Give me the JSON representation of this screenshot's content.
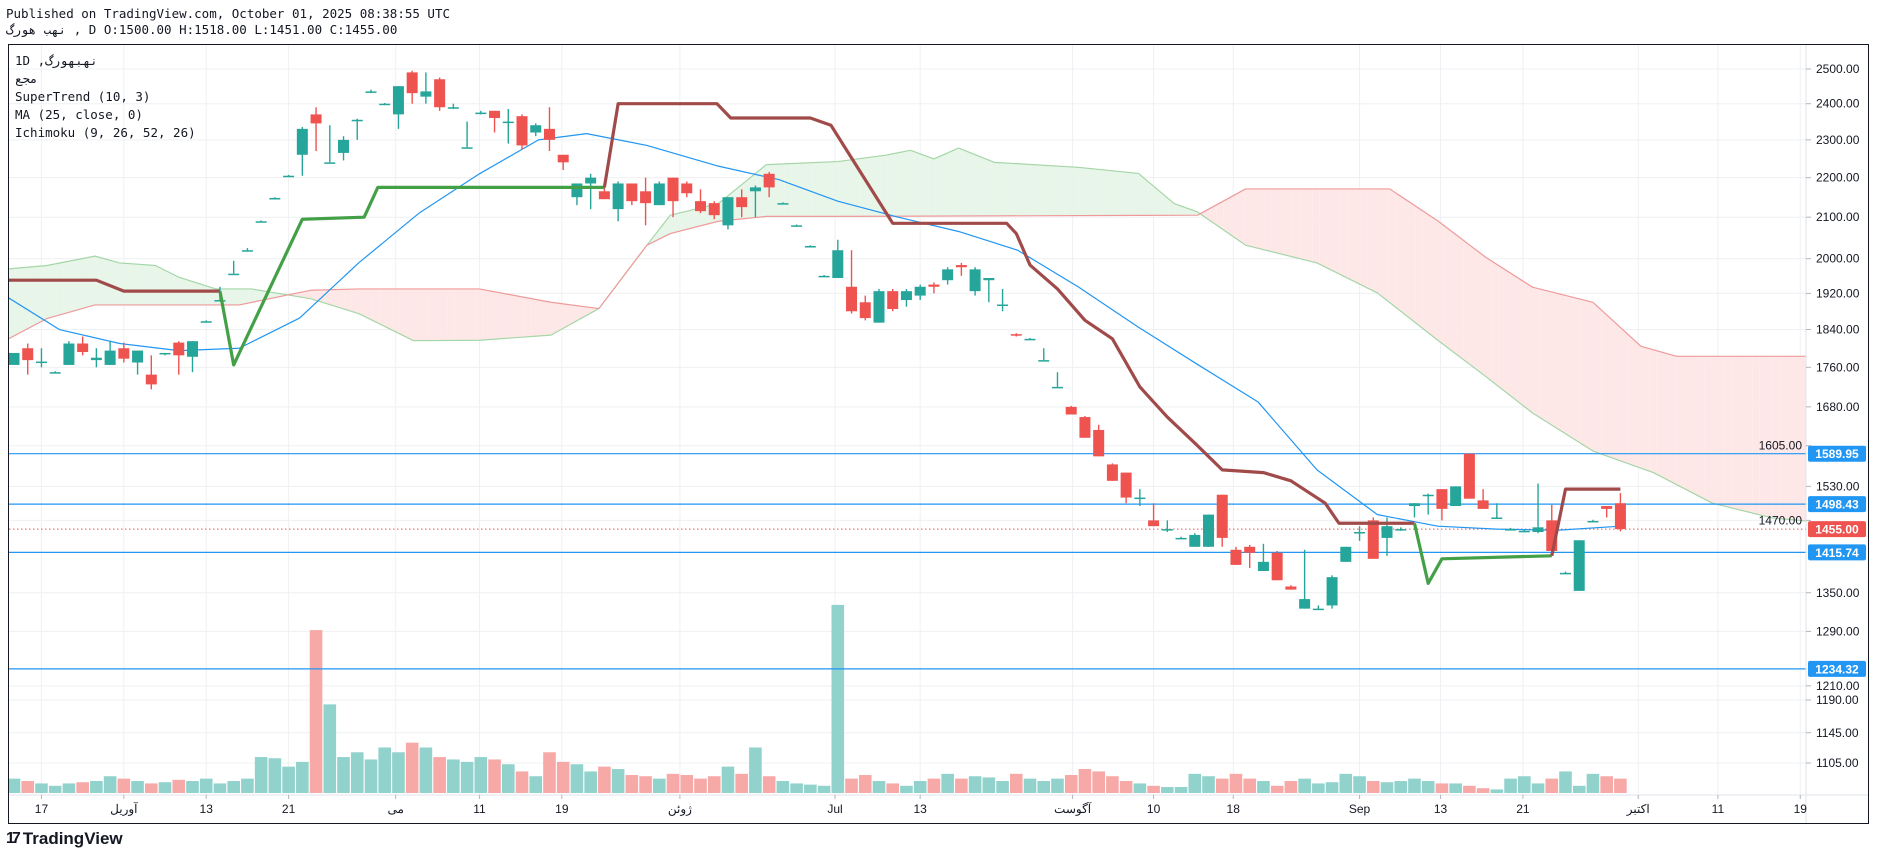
{
  "header": {
    "published": "Published on TradingView.com, October 01, 2025 08:38:55 UTC",
    "symbol_line": "نهب هورگ , D O:1500.00 H:1518.00 L:1451.00 C:1455.00"
  },
  "legend": {
    "symbol": "1D ,نهبهورگ",
    "exchange": "مجع",
    "indicators": [
      "SuperTrend (10, 3)",
      "MA (25, close, 0)",
      "Ichimoku (9, 26, 52, 26)"
    ]
  },
  "brand": {
    "name": "TradingView",
    "mark": "17"
  },
  "colors": {
    "up": "#26a69a",
    "down": "#ef5350",
    "vol_up": "#92d2cc",
    "vol_down": "#f7a9a7",
    "ma": "#2196f3",
    "st_up": "#43a047",
    "st_down": "#a14a4a",
    "cloud_up": "#e8f5e9",
    "cloud_down": "#fde8e7",
    "level": "#2196f3",
    "last": "#ef5350"
  },
  "chart_data": {
    "type": "candlestick",
    "title": "نهبهورگ, 1D",
    "scale": "log",
    "ylim": [
      1060,
      2560
    ],
    "xlim": [
      -0.5,
      130.5
    ],
    "grid": true,
    "y_ticks": [
      "2500.00",
      "2400.00",
      "2300.00",
      "2200.00",
      "2100.00",
      "2000.00",
      "1920.00",
      "1840.00",
      "1760.00",
      "1680.00",
      "1605.00",
      "1530.00",
      "1470.00",
      "1350.00",
      "1290.00",
      "1210.00",
      "1190.00",
      "1145.00",
      "1105.00"
    ],
    "x_ticks": [
      {
        "i": 2.0,
        "label": "17"
      },
      {
        "i": 8.0,
        "label": "آوریل"
      },
      {
        "i": 14.0,
        "label": "13"
      },
      {
        "i": 20.0,
        "label": "21"
      },
      {
        "i": 27.8,
        "label": "می"
      },
      {
        "i": 33.9,
        "label": "11"
      },
      {
        "i": 39.9,
        "label": "19"
      },
      {
        "i": 48.5,
        "label": "ژوئن"
      },
      {
        "i": 59.8,
        "label": "Jul"
      },
      {
        "i": 66.0,
        "label": "13"
      },
      {
        "i": 77.1,
        "label": "آگوست"
      },
      {
        "i": 83.0,
        "label": "10"
      },
      {
        "i": 88.8,
        "label": "18"
      },
      {
        "i": 98.0,
        "label": "Sep"
      },
      {
        "i": 103.9,
        "label": "13"
      },
      {
        "i": 109.9,
        "label": "21"
      },
      {
        "i": 118.3,
        "label": "اکتبر"
      },
      {
        "i": 124.1,
        "label": "11"
      },
      {
        "i": 130.1,
        "label": "19"
      }
    ],
    "price_levels": [
      {
        "value": 1589.95,
        "label": "1589.95",
        "kind": "level"
      },
      {
        "value": 1498.43,
        "label": "1498.43",
        "kind": "level"
      },
      {
        "value": 1415.74,
        "label": "1415.74",
        "kind": "level"
      },
      {
        "value": 1234.32,
        "label": "1234.32",
        "kind": "level"
      },
      {
        "value": 1455.0,
        "label": "1455.00",
        "kind": "last"
      }
    ],
    "ohlc": [
      [
        1765,
        1790,
        1765,
        1790
      ],
      [
        1800,
        1810,
        1745,
        1775
      ],
      [
        1770,
        1800,
        1760,
        1772
      ],
      [
        1750,
        1752,
        1748,
        1750
      ],
      [
        1765,
        1815,
        1765,
        1810
      ],
      [
        1810,
        1825,
        1785,
        1792
      ],
      [
        1775,
        1800,
        1760,
        1780
      ],
      [
        1765,
        1815,
        1765,
        1795
      ],
      [
        1800,
        1812,
        1770,
        1778
      ],
      [
        1770,
        1795,
        1745,
        1795
      ],
      [
        1745,
        1785,
        1715,
        1725
      ],
      [
        1788,
        1790,
        1785,
        1790
      ],
      [
        1812,
        1815,
        1745,
        1785
      ],
      [
        1782,
        1815,
        1750,
        1815
      ],
      [
        1858,
        1860,
        1856,
        1858
      ],
      [
        1905,
        1935,
        1905,
        1905
      ],
      [
        1965,
        1995,
        1965,
        1965
      ],
      [
        2020,
        2025,
        2018,
        2020
      ],
      [
        2090,
        2092,
        2088,
        2090
      ],
      [
        2148,
        2150,
        2146,
        2148
      ],
      [
        2205,
        2207,
        2203,
        2205
      ],
      [
        2260,
        2335,
        2205,
        2330
      ],
      [
        2370,
        2390,
        2270,
        2345
      ],
      [
        2240,
        2340,
        2240,
        2240
      ],
      [
        2265,
        2310,
        2245,
        2300
      ],
      [
        2355,
        2358,
        2300,
        2355
      ],
      [
        2435,
        2440,
        2430,
        2435
      ],
      [
        2400,
        2402,
        2398,
        2400
      ],
      [
        2370,
        2450,
        2330,
        2450
      ],
      [
        2490,
        2495,
        2400,
        2430
      ],
      [
        2420,
        2490,
        2400,
        2435
      ],
      [
        2470,
        2475,
        2380,
        2390
      ],
      [
        2390,
        2400,
        2385,
        2390
      ],
      [
        2280,
        2350,
        2280,
        2280
      ],
      [
        2375,
        2380,
        2370,
        2375
      ],
      [
        2380,
        2380,
        2320,
        2360
      ],
      [
        2350,
        2385,
        2290,
        2350
      ],
      [
        2365,
        2370,
        2275,
        2285
      ],
      [
        2320,
        2345,
        2310,
        2340
      ],
      [
        2330,
        2390,
        2270,
        2300
      ],
      [
        2260,
        2260,
        2220,
        2240
      ],
      [
        2150,
        2185,
        2130,
        2185
      ],
      [
        2185,
        2210,
        2120,
        2200
      ],
      [
        2165,
        2175,
        2145,
        2145
      ],
      [
        2120,
        2190,
        2090,
        2185
      ],
      [
        2185,
        2185,
        2130,
        2140
      ],
      [
        2165,
        2200,
        2080,
        2135
      ],
      [
        2130,
        2190,
        2130,
        2185
      ],
      [
        2200,
        2200,
        2100,
        2140
      ],
      [
        2185,
        2190,
        2150,
        2160
      ],
      [
        2140,
        2170,
        2110,
        2115
      ],
      [
        2135,
        2140,
        2095,
        2105
      ],
      [
        2080,
        2150,
        2070,
        2150
      ],
      [
        2150,
        2170,
        2100,
        2125
      ],
      [
        2165,
        2180,
        2100,
        2175
      ],
      [
        2210,
        2215,
        2150,
        2175
      ],
      [
        2135,
        2137,
        2133,
        2135
      ],
      [
        2080,
        2082,
        2078,
        2080
      ],
      [
        2030,
        2032,
        2028,
        2030
      ],
      [
        1960,
        1962,
        1958,
        1960
      ],
      [
        1955,
        2045,
        1955,
        2020
      ],
      [
        1935,
        2020,
        1875,
        1880
      ],
      [
        1900,
        1915,
        1860,
        1865
      ],
      [
        1855,
        1930,
        1855,
        1925
      ],
      [
        1925,
        1930,
        1880,
        1885
      ],
      [
        1905,
        1930,
        1890,
        1925
      ],
      [
        1915,
        1940,
        1905,
        1935
      ],
      [
        1940,
        1945,
        1920,
        1935
      ],
      [
        1950,
        1980,
        1940,
        1975
      ],
      [
        1985,
        1990,
        1960,
        1980
      ],
      [
        1925,
        1980,
        1915,
        1975
      ],
      [
        1950,
        1955,
        1900,
        1955
      ],
      [
        1895,
        1930,
        1880,
        1895
      ],
      [
        1830,
        1832,
        1825,
        1828
      ],
      [
        1820,
        1822,
        1818,
        1820
      ],
      [
        1775,
        1800,
        1775,
        1775
      ],
      [
        1720,
        1750,
        1720,
        1720
      ],
      [
        1680,
        1682,
        1665,
        1665
      ],
      [
        1660,
        1662,
        1620,
        1620
      ],
      [
        1635,
        1645,
        1585,
        1585
      ],
      [
        1570,
        1572,
        1540,
        1540
      ],
      [
        1555,
        1555,
        1500,
        1510
      ],
      [
        1510,
        1525,
        1495,
        1510
      ],
      [
        1470,
        1500,
        1460,
        1460
      ],
      [
        1455,
        1470,
        1450,
        1455
      ],
      [
        1440,
        1442,
        1438,
        1440
      ],
      [
        1425,
        1448,
        1425,
        1445
      ],
      [
        1425,
        1480,
        1425,
        1480
      ],
      [
        1515,
        1515,
        1425,
        1440
      ],
      [
        1420,
        1425,
        1395,
        1395
      ],
      [
        1425,
        1428,
        1390,
        1415
      ],
      [
        1385,
        1430,
        1385,
        1400
      ],
      [
        1415,
        1418,
        1370,
        1370
      ],
      [
        1360,
        1362,
        1355,
        1355
      ],
      [
        1325,
        1420,
        1325,
        1340
      ],
      [
        1325,
        1330,
        1323,
        1325
      ],
      [
        1330,
        1378,
        1325,
        1375
      ],
      [
        1400,
        1425,
        1400,
        1425
      ],
      [
        1450,
        1460,
        1435,
        1450
      ],
      [
        1470,
        1475,
        1405,
        1405
      ],
      [
        1440,
        1475,
        1410,
        1460
      ],
      [
        1455,
        1458,
        1452,
        1455
      ],
      [
        1495,
        1500,
        1475,
        1500
      ],
      [
        1515,
        1517,
        1480,
        1515
      ],
      [
        1525,
        1525,
        1470,
        1490
      ],
      [
        1495,
        1530,
        1495,
        1530
      ],
      [
        1590,
        1590,
        1508,
        1508
      ],
      [
        1505,
        1525,
        1490,
        1490
      ],
      [
        1475,
        1500,
        1475,
        1475
      ],
      [
        1455,
        1457,
        1453,
        1455
      ],
      [
        1452,
        1454,
        1450,
        1452
      ],
      [
        1450,
        1535,
        1448,
        1458
      ],
      [
        1470,
        1497,
        1412,
        1418
      ],
      [
        1382,
        1384,
        1380,
        1382
      ],
      [
        1353,
        1436,
        1353,
        1436
      ],
      [
        1469,
        1471,
        1467,
        1469
      ],
      [
        1495,
        1495,
        1475,
        1490
      ],
      [
        1500,
        1518,
        1451,
        1455
      ]
    ],
    "volume_relative": [
      12,
      10,
      8,
      6,
      8,
      9,
      10,
      14,
      12,
      10,
      8,
      9,
      11,
      10,
      12,
      8,
      10,
      12,
      30,
      29,
      22,
      26,
      136,
      74,
      30,
      34,
      28,
      38,
      34,
      42,
      38,
      30,
      28,
      26,
      30,
      28,
      24,
      18,
      14,
      34,
      26,
      24,
      18,
      22,
      20,
      15,
      14,
      12,
      16,
      15,
      12,
      14,
      22,
      16,
      38,
      14,
      10,
      8,
      7,
      6,
      157,
      12,
      15,
      10,
      8,
      6,
      10,
      12,
      16,
      12,
      14,
      13,
      10,
      16,
      12,
      10,
      12,
      15,
      20,
      18,
      14,
      10,
      8,
      6,
      5,
      5,
      16,
      14,
      12,
      16,
      12,
      10,
      6,
      10,
      12,
      8,
      9,
      16,
      14,
      10,
      9,
      10,
      12,
      10,
      8,
      8,
      6,
      4,
      3,
      12,
      14,
      8,
      12,
      18,
      6,
      16,
      14,
      12
    ],
    "ma25": [
      [
        -0.4,
        1910
      ],
      [
        3.3,
        1840
      ],
      [
        7.7,
        1810
      ],
      [
        12,
        1795
      ],
      [
        16.4,
        1800
      ],
      [
        20.8,
        1865
      ],
      [
        25.1,
        1990
      ],
      [
        29.5,
        2110
      ],
      [
        33.9,
        2210
      ],
      [
        38.2,
        2300
      ],
      [
        41.7,
        2317
      ],
      [
        46.1,
        2285
      ],
      [
        51.3,
        2230
      ],
      [
        55.7,
        2195
      ],
      [
        60,
        2140
      ],
      [
        64.4,
        2100
      ],
      [
        68.8,
        2065
      ],
      [
        73.1,
        2020
      ],
      [
        77.5,
        1935
      ],
      [
        81.9,
        1845
      ],
      [
        86.2,
        1766
      ],
      [
        90.6,
        1690
      ],
      [
        94.9,
        1560
      ],
      [
        99.3,
        1480
      ],
      [
        103.7,
        1460
      ],
      [
        108,
        1455
      ],
      [
        112.4,
        1453
      ],
      [
        117,
        1460
      ]
    ],
    "supertrend": [
      {
        "trend": "down",
        "points": [
          [
            -0.4,
            1950
          ],
          [
            6,
            1950
          ],
          [
            8,
            1925
          ],
          [
            15,
            1925
          ]
        ]
      },
      {
        "trend": "up",
        "points": [
          [
            15,
            1925
          ],
          [
            16,
            1765
          ],
          [
            21,
            2095
          ],
          [
            25.5,
            2100
          ],
          [
            26.5,
            2175
          ],
          [
            43,
            2175
          ]
        ]
      },
      {
        "trend": "down",
        "points": [
          [
            43,
            2175
          ],
          [
            44,
            2400
          ],
          [
            51.2,
            2400
          ],
          [
            52.2,
            2360
          ],
          [
            58,
            2360
          ],
          [
            59.5,
            2340
          ],
          [
            64,
            2085
          ],
          [
            72.3,
            2085
          ],
          [
            73,
            2060
          ],
          [
            74,
            1985
          ],
          [
            76,
            1930
          ],
          [
            78,
            1860
          ],
          [
            80,
            1820
          ],
          [
            82,
            1720
          ],
          [
            84,
            1660
          ],
          [
            86,
            1610
          ],
          [
            88,
            1560
          ],
          [
            91,
            1555
          ],
          [
            93,
            1540
          ],
          [
            95.5,
            1500
          ],
          [
            96.5,
            1465
          ],
          [
            102,
            1465
          ]
        ]
      },
      {
        "trend": "up",
        "points": [
          [
            102,
            1465
          ],
          [
            103,
            1365
          ],
          [
            104,
            1405
          ],
          [
            112,
            1410
          ]
        ]
      },
      {
        "trend": "down",
        "points": [
          [
            112,
            1410
          ],
          [
            113,
            1525
          ],
          [
            117,
            1525
          ]
        ]
      }
    ],
    "ichimoku_span_a": [
      [
        -0.4,
        1976
      ],
      [
        2.4,
        1984
      ],
      [
        5.9,
        2006
      ],
      [
        7.7,
        1990
      ],
      [
        10.3,
        1984
      ],
      [
        12,
        1957
      ],
      [
        14.7,
        1930
      ],
      [
        17.3,
        1930
      ],
      [
        21.6,
        1908
      ],
      [
        25.1,
        1875
      ],
      [
        29.1,
        1816
      ],
      [
        33.9,
        1817
      ],
      [
        39.1,
        1828
      ],
      [
        42.6,
        1886
      ],
      [
        46.1,
        2032
      ],
      [
        47.8,
        2105
      ],
      [
        51.3,
        2134
      ],
      [
        54.8,
        2234
      ],
      [
        60,
        2242
      ],
      [
        63.5,
        2259
      ],
      [
        65.3,
        2272
      ],
      [
        67,
        2249
      ],
      [
        68.8,
        2278
      ],
      [
        71.4,
        2240
      ],
      [
        77.5,
        2227
      ],
      [
        81.9,
        2211
      ],
      [
        84.5,
        2134
      ],
      [
        86.2,
        2113
      ],
      [
        89.7,
        2032
      ],
      [
        94.9,
        1990
      ],
      [
        99.3,
        1921
      ],
      [
        103.7,
        1817
      ],
      [
        107.2,
        1741
      ],
      [
        110.6,
        1668
      ],
      [
        115,
        1595
      ],
      [
        119.4,
        1555
      ],
      [
        123.7,
        1500
      ],
      [
        128.1,
        1474
      ],
      [
        130.5,
        1469
      ]
    ],
    "ichimoku_span_b": [
      [
        -0.4,
        1820
      ],
      [
        2.4,
        1864
      ],
      [
        5.9,
        1894
      ],
      [
        16.4,
        1894
      ],
      [
        21.6,
        1927
      ],
      [
        25.1,
        1930
      ],
      [
        33.9,
        1930
      ],
      [
        39.1,
        1900
      ],
      [
        42.6,
        1886
      ],
      [
        46.1,
        2032
      ],
      [
        47.8,
        2060
      ],
      [
        51.3,
        2090
      ],
      [
        54.8,
        2102
      ],
      [
        60,
        2102
      ],
      [
        86.2,
        2105
      ],
      [
        89.7,
        2171
      ],
      [
        100.2,
        2171
      ],
      [
        103.7,
        2091
      ],
      [
        107.2,
        2003
      ],
      [
        110.6,
        1934
      ],
      [
        115,
        1900
      ],
      [
        118.5,
        1804
      ],
      [
        121.1,
        1783
      ],
      [
        130.5,
        1783
      ]
    ]
  }
}
